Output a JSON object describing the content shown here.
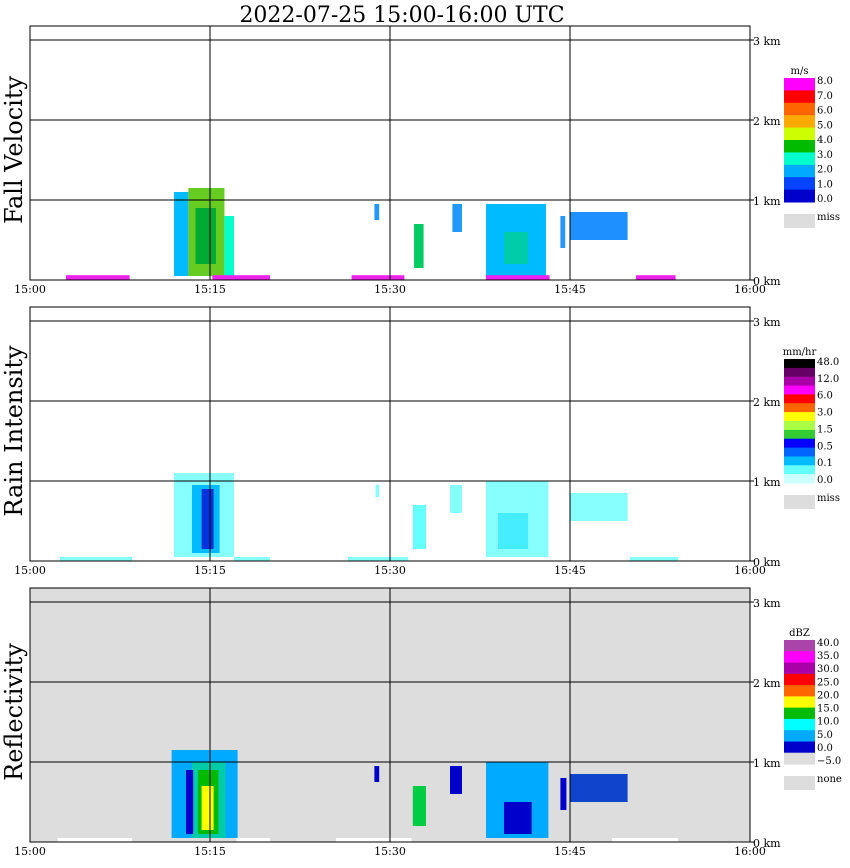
{
  "title": "2022-07-25   15:00-16:00 UTC",
  "chart_data": [
    {
      "type": "heatmap",
      "title": "Fall Velocity",
      "x_ticks": [
        "15:00",
        "15:15",
        "15:30",
        "15:45",
        "16:00"
      ],
      "x_range_minutes": [
        0,
        60
      ],
      "y_ticks": [
        "0 km",
        "1 km",
        "2 km",
        "3 km"
      ],
      "y_range_km": [
        0,
        3.2
      ],
      "missing_background": false,
      "colorbar": {
        "unit": "m/s",
        "labels": [
          "8.0",
          "7.0",
          "6.0",
          "5.0",
          "4.0",
          "3.0",
          "2.0",
          "1.0",
          "0.0"
        ],
        "colors": [
          "#ff00ff",
          "#ff0000",
          "#ff6600",
          "#ffaa00",
          "#ccff00",
          "#00bb00",
          "#00ffcc",
          "#00aaff",
          "#0044ff",
          "#0000cc"
        ],
        "miss_label": "miss",
        "miss_color": "#dddddd"
      },
      "echoes": [
        {
          "t0": 3.0,
          "t1": 8.3,
          "h0": 0.0,
          "h1": 0.06,
          "color": "#ee22ee"
        },
        {
          "t0": 12.0,
          "t1": 13.2,
          "h0": 0.05,
          "h1": 1.1,
          "color": "#00bbff"
        },
        {
          "t0": 13.2,
          "t1": 16.2,
          "h0": 0.05,
          "h1": 1.15,
          "color": "#66cc22"
        },
        {
          "t0": 13.8,
          "t1": 15.5,
          "h0": 0.2,
          "h1": 0.9,
          "color": "#00aa33"
        },
        {
          "t0": 16.2,
          "t1": 17.0,
          "h0": 0.05,
          "h1": 0.8,
          "color": "#00ffcc"
        },
        {
          "t0": 15.2,
          "t1": 20.0,
          "h0": 0.0,
          "h1": 0.06,
          "color": "#ee22ee"
        },
        {
          "t0": 26.8,
          "t1": 31.2,
          "h0": 0.0,
          "h1": 0.06,
          "color": "#ee22ee"
        },
        {
          "t0": 28.7,
          "t1": 29.1,
          "h0": 0.75,
          "h1": 0.95,
          "color": "#2299ff"
        },
        {
          "t0": 32.0,
          "t1": 32.8,
          "h0": 0.15,
          "h1": 0.7,
          "color": "#00cc66"
        },
        {
          "t0": 35.2,
          "t1": 36.0,
          "h0": 0.6,
          "h1": 0.95,
          "color": "#2299ff"
        },
        {
          "t0": 38.0,
          "t1": 43.0,
          "h0": 0.05,
          "h1": 0.95,
          "color": "#00bbff"
        },
        {
          "t0": 39.5,
          "t1": 41.5,
          "h0": 0.2,
          "h1": 0.6,
          "color": "#00ccaa"
        },
        {
          "t0": 38.0,
          "t1": 43.3,
          "h0": 0.0,
          "h1": 0.06,
          "color": "#ee22ee"
        },
        {
          "t0": 44.2,
          "t1": 44.6,
          "h0": 0.4,
          "h1": 0.8,
          "color": "#2299ff"
        },
        {
          "t0": 45.0,
          "t1": 49.8,
          "h0": 0.5,
          "h1": 0.85,
          "color": "#1e90ff"
        },
        {
          "t0": 50.5,
          "t1": 53.8,
          "h0": 0.0,
          "h1": 0.06,
          "color": "#ee22ee"
        }
      ]
    },
    {
      "type": "heatmap",
      "title": "Rain Intensity",
      "x_ticks": [
        "15:00",
        "15:15",
        "15:30",
        "15:45",
        "16:00"
      ],
      "x_range_minutes": [
        0,
        60
      ],
      "y_ticks": [
        "0 km",
        "1 km",
        "2 km",
        "3 km"
      ],
      "y_range_km": [
        0,
        3.2
      ],
      "missing_background": false,
      "colorbar": {
        "unit": "mm/hr",
        "labels": [
          "48.0",
          "12.0",
          "6.0",
          "3.0",
          "1.5",
          "0.5",
          "0.1",
          "0.0"
        ],
        "colors": [
          "#000000",
          "#660066",
          "#aa00aa",
          "#ff00ff",
          "#ff0000",
          "#ff6600",
          "#ffff00",
          "#aaff44",
          "#33cc33",
          "#0000ff",
          "#0066ff",
          "#00bbff",
          "#66ffff",
          "#ccffff"
        ],
        "miss_label": "miss",
        "miss_color": "#dddddd"
      },
      "echoes": [
        {
          "t0": 2.5,
          "t1": 8.5,
          "h0": 0.0,
          "h1": 0.05,
          "color": "#88ffff"
        },
        {
          "t0": 12.0,
          "t1": 17.0,
          "h0": 0.05,
          "h1": 1.1,
          "color": "#88ffff"
        },
        {
          "t0": 13.5,
          "t1": 15.8,
          "h0": 0.1,
          "h1": 0.95,
          "color": "#00bbff"
        },
        {
          "t0": 14.3,
          "t1": 15.3,
          "h0": 0.15,
          "h1": 0.9,
          "color": "#0033dd"
        },
        {
          "t0": 17.0,
          "t1": 20.0,
          "h0": 0.0,
          "h1": 0.05,
          "color": "#88ffff"
        },
        {
          "t0": 26.5,
          "t1": 31.5,
          "h0": 0.0,
          "h1": 0.05,
          "color": "#88ffff"
        },
        {
          "t0": 28.8,
          "t1": 29.1,
          "h0": 0.8,
          "h1": 0.95,
          "color": "#88ffff"
        },
        {
          "t0": 31.9,
          "t1": 33.0,
          "h0": 0.15,
          "h1": 0.7,
          "color": "#66ffff"
        },
        {
          "t0": 35.0,
          "t1": 36.0,
          "h0": 0.6,
          "h1": 0.95,
          "color": "#88ffff"
        },
        {
          "t0": 38.0,
          "t1": 43.2,
          "h0": 0.05,
          "h1": 1.0,
          "color": "#88ffff"
        },
        {
          "t0": 39.0,
          "t1": 41.5,
          "h0": 0.15,
          "h1": 0.6,
          "color": "#44eeff"
        },
        {
          "t0": 45.0,
          "t1": 49.8,
          "h0": 0.5,
          "h1": 0.85,
          "color": "#88ffff"
        },
        {
          "t0": 50.0,
          "t1": 54.0,
          "h0": 0.0,
          "h1": 0.05,
          "color": "#88ffff"
        }
      ]
    },
    {
      "type": "heatmap",
      "title": "Reflectivity",
      "x_ticks": [
        "15:00",
        "15:15",
        "15:30",
        "15:45",
        "16:00"
      ],
      "x_range_minutes": [
        0,
        60
      ],
      "y_ticks": [
        "0 km",
        "1 km",
        "2 km",
        "3 km"
      ],
      "y_range_km": [
        0,
        3.2
      ],
      "missing_background": true,
      "colorbar": {
        "unit": "dBZ",
        "labels": [
          "40.0",
          "35.0",
          "30.0",
          "25.0",
          "20.0",
          "15.0",
          "10.0",
          "5.0",
          "0.0",
          "−5.0"
        ],
        "colors": [
          "#aa44aa",
          "#ff00ff",
          "#aa00aa",
          "#ff0000",
          "#ff6600",
          "#ffff00",
          "#00bb00",
          "#00ffff",
          "#00aaff",
          "#0000cc",
          "#dddddd"
        ],
        "miss_label": "none",
        "miss_color": "#dddddd"
      },
      "echoes": [
        {
          "t0": 2.3,
          "t1": 8.5,
          "h0": 0.0,
          "h1": 0.05,
          "color": "#ffffff"
        },
        {
          "t0": 11.8,
          "t1": 17.3,
          "h0": 0.05,
          "h1": 1.15,
          "color": "#00aaff"
        },
        {
          "t0": 13.5,
          "t1": 16.3,
          "h0": 0.05,
          "h1": 1.0,
          "color": "#00ccaa"
        },
        {
          "t0": 14.0,
          "t1": 15.7,
          "h0": 0.1,
          "h1": 0.9,
          "color": "#00bb00"
        },
        {
          "t0": 14.3,
          "t1": 15.3,
          "h0": 0.15,
          "h1": 0.7,
          "color": "#ffff00"
        },
        {
          "t0": 13.0,
          "t1": 13.6,
          "h0": 0.1,
          "h1": 0.9,
          "color": "#0000cc"
        },
        {
          "t0": 17.2,
          "t1": 20.0,
          "h0": 0.0,
          "h1": 0.05,
          "color": "#ffffff"
        },
        {
          "t0": 25.5,
          "t1": 31.8,
          "h0": 0.0,
          "h1": 0.05,
          "color": "#ffffff"
        },
        {
          "t0": 28.7,
          "t1": 29.1,
          "h0": 0.75,
          "h1": 0.95,
          "color": "#0000cc"
        },
        {
          "t0": 31.9,
          "t1": 33.0,
          "h0": 0.2,
          "h1": 0.7,
          "color": "#00cc44"
        },
        {
          "t0": 35.0,
          "t1": 36.0,
          "h0": 0.6,
          "h1": 0.95,
          "color": "#0000cc"
        },
        {
          "t0": 38.0,
          "t1": 43.2,
          "h0": 0.05,
          "h1": 1.0,
          "color": "#00aaff"
        },
        {
          "t0": 39.5,
          "t1": 41.8,
          "h0": 0.1,
          "h1": 0.5,
          "color": "#0000cc"
        },
        {
          "t0": 44.2,
          "t1": 44.7,
          "h0": 0.4,
          "h1": 0.8,
          "color": "#0000cc"
        },
        {
          "t0": 45.0,
          "t1": 49.8,
          "h0": 0.5,
          "h1": 0.85,
          "color": "#1144cc"
        },
        {
          "t0": 48.5,
          "t1": 54.0,
          "h0": 0.0,
          "h1": 0.05,
          "color": "#ffffff"
        }
      ]
    }
  ]
}
